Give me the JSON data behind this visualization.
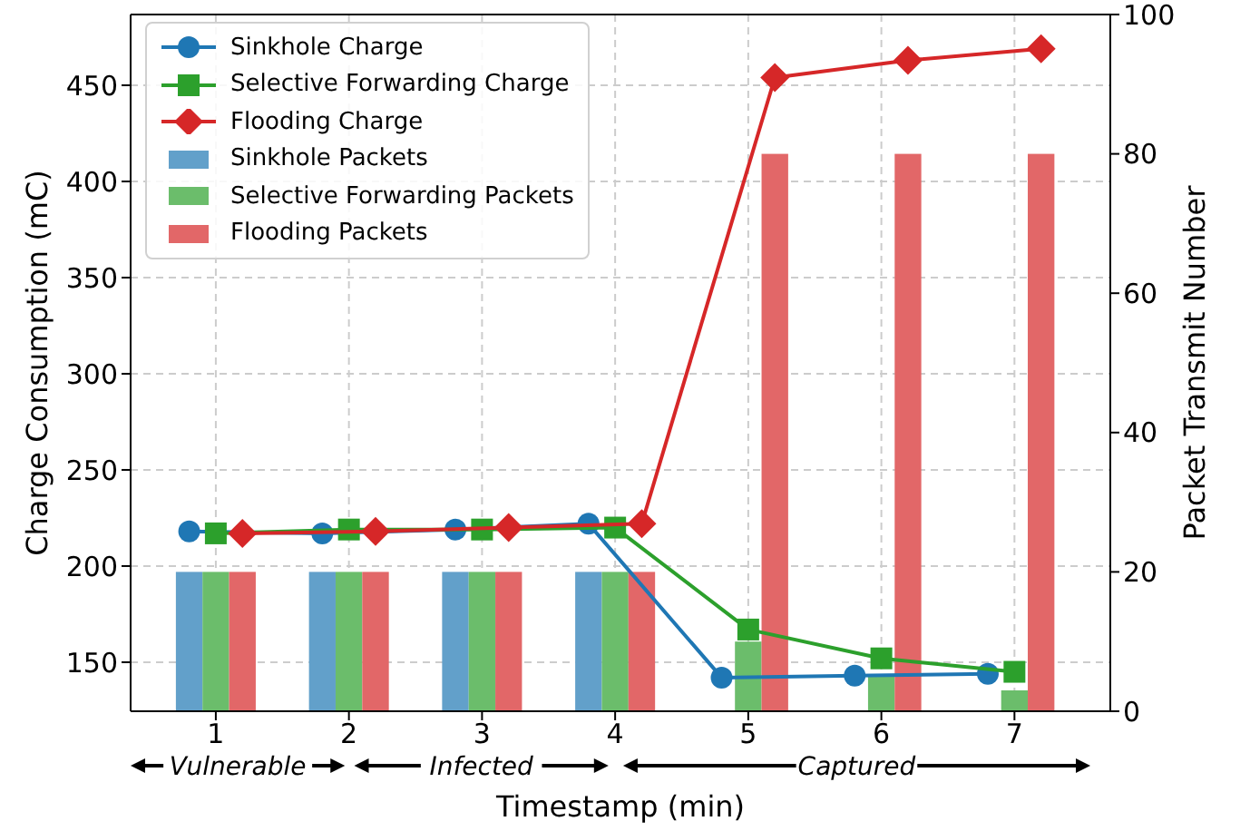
{
  "chart_data": {
    "type": "bar",
    "xlabel": "Timestamp (min)",
    "ylabel": "Charge Consumption (mC)",
    "y2label": "Packet Transmit Number",
    "x": [
      1,
      2,
      3,
      4,
      5,
      6,
      7
    ],
    "series": [
      {
        "name": "Sinkhole Charge",
        "type": "line",
        "marker": "circle",
        "color": "#1f77b4",
        "x": [
          0.8,
          1.8,
          2.8,
          3.8,
          4.8,
          5.8,
          6.8
        ],
        "values": [
          218,
          217,
          219,
          222,
          142,
          143,
          144
        ]
      },
      {
        "name": "Selective Forwarding Charge",
        "type": "line",
        "marker": "square",
        "color": "#2ca02c",
        "x": [
          1,
          2,
          3,
          4,
          5,
          6,
          7
        ],
        "values": [
          217,
          219,
          219,
          220,
          167,
          152,
          145
        ]
      },
      {
        "name": "Flooding Charge",
        "type": "line",
        "marker": "diamond",
        "color": "#d62728",
        "x": [
          1.2,
          2.2,
          3.2,
          4.2,
          5.2,
          6.2,
          7.2
        ],
        "values": [
          217,
          218,
          220,
          222,
          454,
          463,
          469
        ]
      },
      {
        "name": "Sinkhole Packets",
        "axis": "y2",
        "color": "#62a0ca",
        "values": [
          20,
          20,
          20,
          20,
          0,
          0,
          0
        ]
      },
      {
        "name": "Selective Forwarding Packets",
        "axis": "y2",
        "color": "#6bbd6b",
        "values": [
          20,
          20,
          20,
          20,
          10,
          5,
          3
        ]
      },
      {
        "name": "Flooding Packets",
        "axis": "y2",
        "color": "#e26768",
        "values": [
          20,
          20,
          20,
          20,
          80,
          80,
          80
        ]
      }
    ],
    "xlim": [
      0.36,
      7.72
    ],
    "xticks": [
      1,
      2,
      3,
      4,
      5,
      6,
      7
    ],
    "ylim": [
      124.5,
      486.8
    ],
    "yticks": [
      150,
      200,
      250,
      300,
      350,
      400,
      450
    ],
    "y2lim": [
      0,
      100
    ],
    "y2ticks": [
      0,
      20,
      40,
      60,
      80,
      100
    ],
    "grid": true,
    "legend": "top left",
    "annotations": [
      "Vulnerable",
      "Infected",
      "Captured"
    ]
  }
}
